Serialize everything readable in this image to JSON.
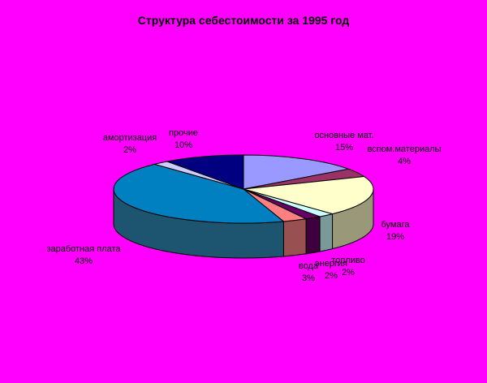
{
  "chart_data": {
    "type": "pie",
    "style": "3d",
    "title": "Структура себестоимости за 1995 год",
    "background_color": "#FF00FF",
    "start_angle": "12-oclock",
    "direction": "clockwise",
    "legend_position": "none",
    "data_label_format": "category-name-and-percent",
    "slices": [
      {
        "label": "основные мат.",
        "value_pct": 15,
        "top_color": "#9999FF",
        "side_color": "#5C5C99"
      },
      {
        "label": "вспом.материалы",
        "value_pct": 4,
        "top_color": "#993366",
        "side_color": "#5C1F3D"
      },
      {
        "label": "бумага",
        "value_pct": 19,
        "top_color": "#FFFFCC",
        "side_color": "#99997A"
      },
      {
        "label": "топливо",
        "value_pct": 2,
        "top_color": "#CCFFFF",
        "side_color": "#7A9999"
      },
      {
        "label": "энергия",
        "value_pct": 2,
        "top_color": "#660066",
        "side_color": "#3D003D"
      },
      {
        "label": "вода",
        "value_pct": 3,
        "top_color": "#FF8080",
        "side_color": "#995050"
      },
      {
        "label": "заработная плата",
        "value_pct": 43,
        "top_color": "#0080C0",
        "side_color": "#1D5570"
      },
      {
        "label": "амортизация",
        "value_pct": 2,
        "top_color": "#CCCCFF",
        "side_color": "#7A7A99"
      },
      {
        "label": "прочие",
        "value_pct": 10,
        "top_color": "#000080",
        "side_color": "#00004D"
      }
    ]
  }
}
